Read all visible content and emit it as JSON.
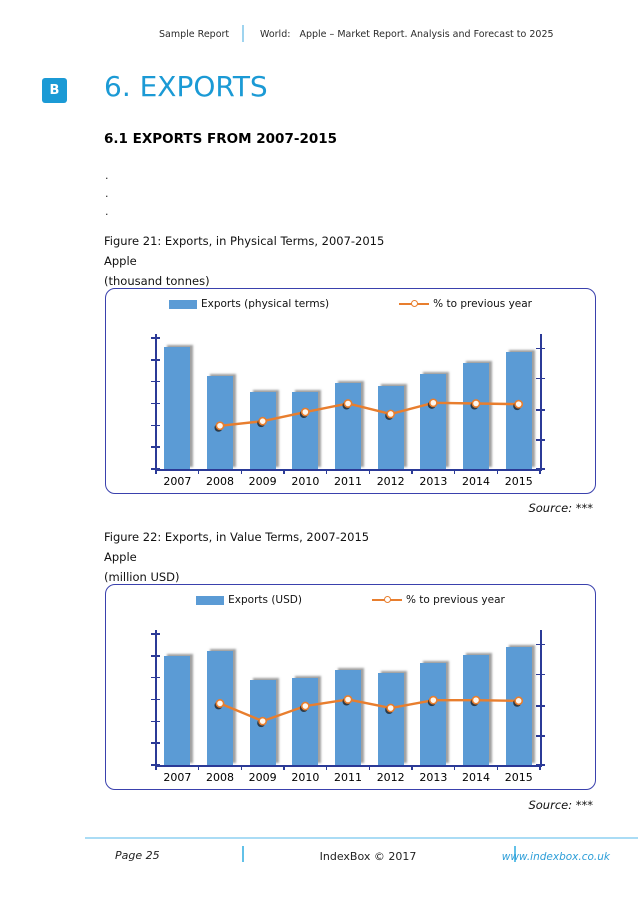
{
  "header": {
    "left": "Sample Report",
    "right": "World:   Apple – Market Report. Analysis and Forecast to 2025"
  },
  "title": {
    "badge": "B",
    "text": "6. EXPORTS"
  },
  "section_heading": "6.1 EXPORTS FROM 2007-2015",
  "placeholder_lines": [
    ".",
    ".",
    "."
  ],
  "figures": [
    {
      "caption": [
        "Figure 21: Exports, in Physical Terms, 2007-2015",
        "Apple",
        "(thousand tonnes)"
      ],
      "source": "Source: ***"
    },
    {
      "caption": [
        "Figure 22: Exports, in Value Terms, 2007-2015",
        "Apple",
        "(million USD)"
      ],
      "source": "Source: ***"
    }
  ],
  "footer": {
    "page": "Page 25",
    "center": "IndexBox © 2017",
    "link": "www.indexbox.co.uk"
  },
  "colors": {
    "accent_blue": "#1b9ad5",
    "bar_fill": "#5b9bd5",
    "bar_shadow": "rgba(80,80,80,0.55)",
    "line_orange": "#e87e2e",
    "marker_fill": "#fdf7ef",
    "marker_shadow": "rgba(35,35,35,0.8)",
    "axis_navy": "#2b3a97",
    "chart_border": "#3a41ad",
    "footer_rule": "#aadcf5",
    "divider_blue": "#62c1e8",
    "link_blue": "#2d9ed8"
  },
  "chart_data": [
    {
      "type": "bar",
      "combo": "bar + line on secondary axis",
      "title": "Exports, in Physical Terms, 2007-2015, Apple (thousand tonnes)",
      "categories": [
        "2007",
        "2008",
        "2009",
        "2010",
        "2011",
        "2012",
        "2013",
        "2014",
        "2015"
      ],
      "series": [
        {
          "name": "Exports (physical terms)",
          "type": "bar",
          "axis": "primary-left",
          "values_pct_of_plot_height": [
            93,
            71,
            59,
            58.5,
            66,
            63,
            72.5,
            81,
            89.5
          ],
          "values_relative_index_2007_100": [
            100,
            76,
            64,
            63,
            71,
            68,
            78,
            87,
            96
          ]
        },
        {
          "name": "% to previous year",
          "type": "line",
          "axis": "secondary-right",
          "values_pct_of_plot_height": [
            null,
            33,
            36.5,
            43.5,
            50,
            42,
            50.5,
            50,
            49.5
          ]
        }
      ],
      "legend_position": "top-center",
      "gridlines": false,
      "axis_tick_labels": "none shown (redacted sample report)"
    },
    {
      "type": "bar",
      "combo": "bar + line on secondary axis",
      "title": "Exports, in Value Terms, 2007-2015, Apple (million USD)",
      "categories": [
        "2007",
        "2008",
        "2009",
        "2010",
        "2011",
        "2012",
        "2013",
        "2014",
        "2015"
      ],
      "series": [
        {
          "name": "Exports (USD)",
          "type": "bar",
          "axis": "primary-left",
          "values_pct_of_plot_height": [
            83,
            87,
            65,
            66.5,
            72.5,
            70.5,
            77.5,
            84,
            90
          ],
          "values_relative_index_2015_100": [
            93,
            97,
            72,
            74,
            81,
            78,
            86,
            93,
            100
          ]
        },
        {
          "name": "% to previous year",
          "type": "line",
          "axis": "secondary-right",
          "values_pct_of_plot_height": [
            null,
            47,
            33.5,
            45,
            50,
            43.5,
            49.5,
            49.5,
            49
          ]
        }
      ],
      "legend_position": "top-center",
      "gridlines": false,
      "axis_tick_labels": "none shown (redacted sample report)"
    }
  ]
}
